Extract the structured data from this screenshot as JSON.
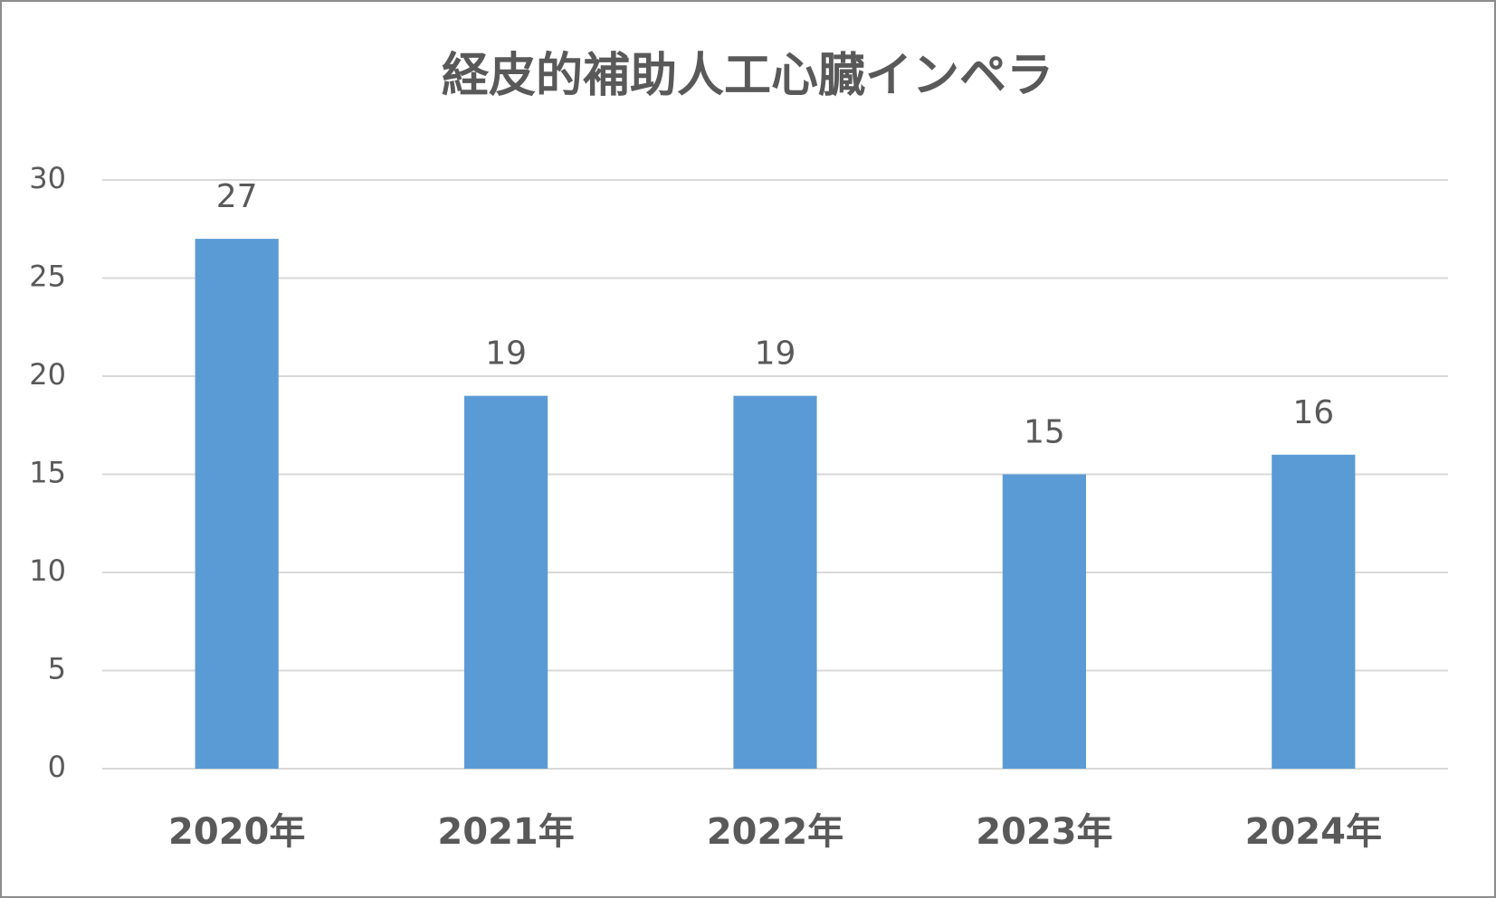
{
  "chart_data": {
    "type": "bar",
    "title": "経皮的補助人工心臓インペラ",
    "categories": [
      "2020年",
      "2021年",
      "2022年",
      "2023年",
      "2024年"
    ],
    "values": [
      27,
      19,
      19,
      15,
      16
    ],
    "color": "#5b9bd5",
    "ylim": [
      0,
      30
    ],
    "yticks": [
      0,
      5,
      10,
      15,
      20,
      25,
      30
    ],
    "grid": true
  }
}
